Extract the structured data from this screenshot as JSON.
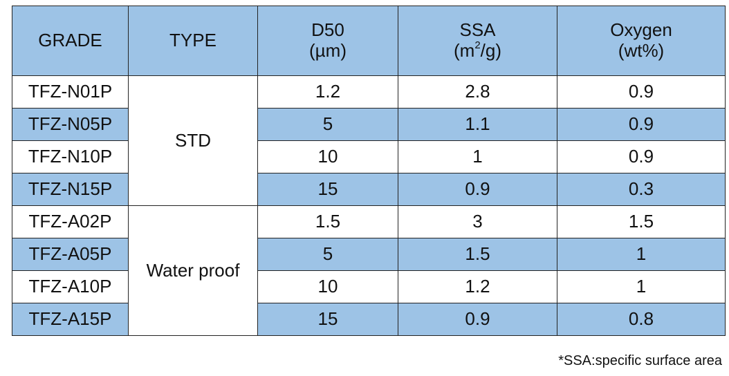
{
  "table": {
    "headers": {
      "grade": "GRADE",
      "type": "TYPE",
      "d50": {
        "name": "D50",
        "unit": "(µm)"
      },
      "ssa": {
        "name": "SSA",
        "unit_open": "(m",
        "unit_sup": "2",
        "unit_close": "/g)"
      },
      "oxygen": {
        "name": "Oxygen",
        "unit": "(wt%)"
      }
    },
    "groups": [
      {
        "type": "STD",
        "rows": [
          {
            "grade": "TFZ-N01P",
            "d50": "1.2",
            "ssa": "2.8",
            "oxygen": "0.9"
          },
          {
            "grade": "TFZ-N05P",
            "d50": "5",
            "ssa": "1.1",
            "oxygen": "0.9"
          },
          {
            "grade": "TFZ-N10P",
            "d50": "10",
            "ssa": "1",
            "oxygen": "0.9"
          },
          {
            "grade": "TFZ-N15P",
            "d50": "15",
            "ssa": "0.9",
            "oxygen": "0.3"
          }
        ]
      },
      {
        "type": "Water proof",
        "rows": [
          {
            "grade": "TFZ-A02P",
            "d50": "1.5",
            "ssa": "3",
            "oxygen": "1.5"
          },
          {
            "grade": "TFZ-A05P",
            "d50": "5",
            "ssa": "1.5",
            "oxygen": "1"
          },
          {
            "grade": "TFZ-A10P",
            "d50": "10",
            "ssa": "1.2",
            "oxygen": "1"
          },
          {
            "grade": "TFZ-A15P",
            "d50": "15",
            "ssa": "0.9",
            "oxygen": "0.8"
          }
        ]
      }
    ]
  },
  "footnote": "*SSA:specific surface area",
  "colors": {
    "header_bg": "#9dc3e6",
    "shaded_row_bg": "#9dc3e6",
    "border": "#222222"
  }
}
